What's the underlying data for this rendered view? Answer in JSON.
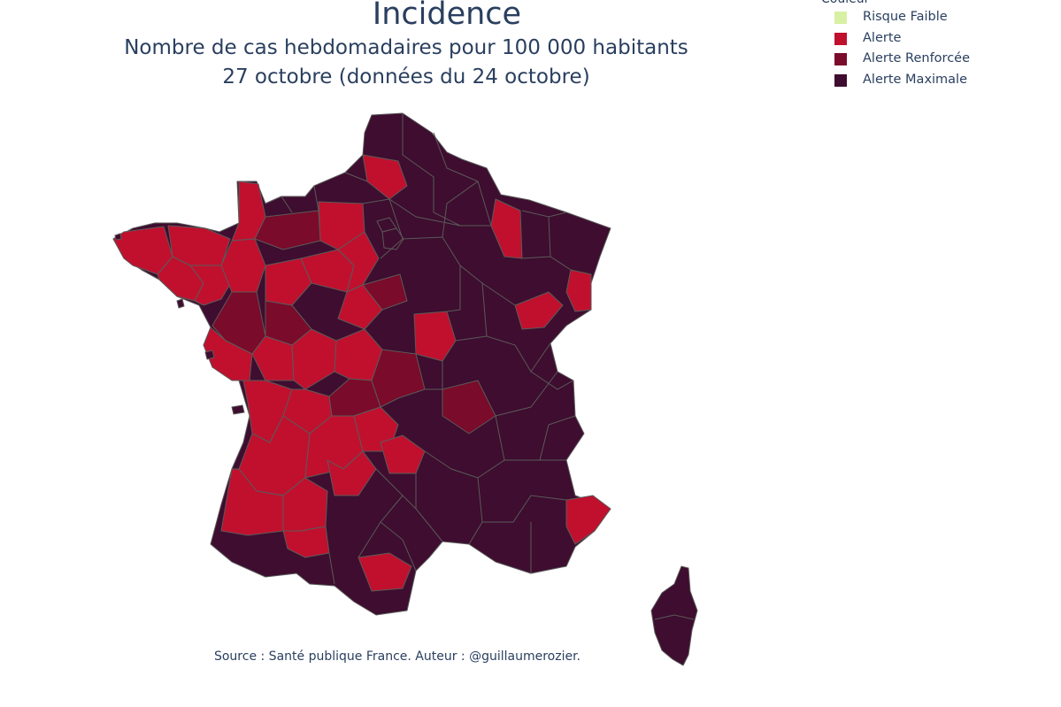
{
  "title": "Incidence",
  "subtitle_line1": "Nombre de cas hebdomadaires pour 100 000 habitants",
  "subtitle_line2": "27 octobre (données du 24 octobre)",
  "legend": {
    "title": "Couleur",
    "items": [
      {
        "label": "Risque Faible",
        "color": "#d7f0a3"
      },
      {
        "label": "Alerte",
        "color": "#c0102e"
      },
      {
        "label": "Alerte Renforcée",
        "color": "#7a0b2a"
      },
      {
        "label": "Alerte Maximale",
        "color": "#3e0d2f"
      }
    ]
  },
  "source": "Source : Santé publique France. Auteur : @guillaumerozier.",
  "colors": {
    "alerte": "#a50f2d",
    "alerte_vive": "#c0102e",
    "alerte_renforcee": "#7a0b2a",
    "alerte_maximale": "#3e0d2f",
    "border": "#5a5a5a"
  }
}
